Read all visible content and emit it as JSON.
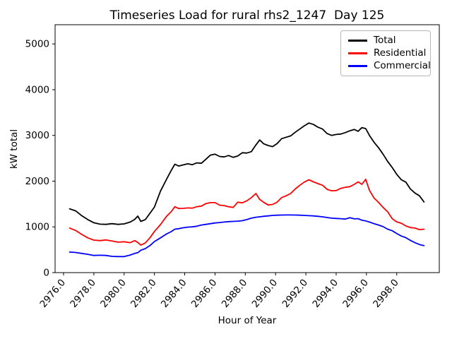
{
  "chart_data": {
    "type": "line",
    "title": "Timeseries Load for rural rhs2_1247  Day 125",
    "xlabel": "Hour of Year",
    "ylabel": "kW total",
    "xlim": [
      2975.44,
      3000.81
    ],
    "ylim": [
      0,
      5420
    ],
    "grid": false,
    "legend_position": "upper right",
    "legend_border_color": "#b7b7b7",
    "background_color": "#ffffff",
    "xticks": [
      2976,
      2978,
      2980,
      2982,
      2984,
      2986,
      2988,
      2990,
      2992,
      2994,
      2996,
      2998
    ],
    "xtick_labels": [
      "2976.0",
      "2978.0",
      "2980.0",
      "2982.0",
      "2984.0",
      "2986.0",
      "2988.0",
      "2990.0",
      "2992.0",
      "2994.0",
      "2996.0",
      "2998.0"
    ],
    "xtick_rotation": -50,
    "yticks": [
      0,
      1000,
      2000,
      3000,
      4000,
      5000
    ],
    "ytick_labels": [
      "0",
      "1000",
      "2000",
      "3000",
      "4000",
      "5000"
    ],
    "x": [
      2976.4,
      2976.8,
      2977.2,
      2977.6,
      2978.0,
      2978.4,
      2978.8,
      2979.2,
      2979.6,
      2980.0,
      2980.4,
      2980.7,
      2980.9,
      2981.1,
      2981.4,
      2981.7,
      2982.0,
      2982.4,
      2982.8,
      2983.1,
      2983.35,
      2983.6,
      2983.9,
      2984.2,
      2984.5,
      2984.8,
      2985.1,
      2985.4,
      2985.7,
      2986.0,
      2986.3,
      2986.6,
      2986.9,
      2987.2,
      2987.5,
      2987.8,
      2988.1,
      2988.4,
      2988.7,
      2988.95,
      2989.2,
      2989.5,
      2989.8,
      2990.1,
      2990.4,
      2990.7,
      2991.0,
      2991.3,
      2991.6,
      2991.9,
      2992.2,
      2992.5,
      2992.8,
      2993.1,
      2993.4,
      2993.7,
      2994.0,
      2994.3,
      2994.6,
      2994.9,
      2995.2,
      2995.45,
      2995.7,
      2995.95,
      2996.2,
      2996.5,
      2996.8,
      2997.1,
      2997.4,
      2997.7,
      2998.0,
      2998.3,
      2998.6,
      2998.9,
      2999.2,
      2999.5,
      2999.8
    ],
    "series": [
      {
        "name": "Total",
        "color": "#000000",
        "values": [
          1395,
          1350,
          1245,
          1160,
          1090,
          1060,
          1055,
          1070,
          1055,
          1065,
          1105,
          1165,
          1235,
          1120,
          1160,
          1295,
          1435,
          1780,
          2040,
          2230,
          2370,
          2330,
          2355,
          2380,
          2360,
          2400,
          2390,
          2480,
          2570,
          2590,
          2540,
          2530,
          2560,
          2520,
          2550,
          2620,
          2615,
          2645,
          2790,
          2900,
          2820,
          2780,
          2755,
          2820,
          2930,
          2960,
          2990,
          3070,
          3140,
          3210,
          3270,
          3240,
          3180,
          3140,
          3040,
          3000,
          3020,
          3030,
          3060,
          3100,
          3130,
          3090,
          3170,
          3150,
          3000,
          2850,
          2730,
          2590,
          2430,
          2300,
          2150,
          2030,
          1980,
          1830,
          1740,
          1680,
          1545
        ]
      },
      {
        "name": "Residential",
        "color": "#ff0000",
        "values": [
          975,
          920,
          835,
          760,
          710,
          700,
          715,
          690,
          665,
          675,
          655,
          700,
          660,
          600,
          650,
          760,
          900,
          1050,
          1230,
          1330,
          1440,
          1400,
          1405,
          1415,
          1410,
          1440,
          1455,
          1510,
          1530,
          1530,
          1475,
          1465,
          1440,
          1425,
          1540,
          1525,
          1570,
          1640,
          1730,
          1600,
          1540,
          1480,
          1490,
          1540,
          1640,
          1680,
          1730,
          1830,
          1910,
          1980,
          2030,
          1985,
          1945,
          1910,
          1820,
          1790,
          1795,
          1840,
          1865,
          1880,
          1930,
          1985,
          1930,
          2040,
          1800,
          1630,
          1535,
          1425,
          1330,
          1180,
          1110,
          1080,
          1020,
          985,
          975,
          940,
          950
        ]
      },
      {
        "name": "Commercial",
        "color": "#0000ff",
        "values": [
          450,
          440,
          420,
          400,
          375,
          380,
          375,
          355,
          350,
          350,
          385,
          420,
          435,
          490,
          525,
          590,
          680,
          760,
          845,
          895,
          950,
          960,
          980,
          995,
          1000,
          1015,
          1040,
          1055,
          1070,
          1085,
          1095,
          1105,
          1115,
          1120,
          1125,
          1135,
          1160,
          1190,
          1210,
          1220,
          1230,
          1240,
          1250,
          1255,
          1258,
          1260,
          1260,
          1258,
          1255,
          1250,
          1245,
          1240,
          1230,
          1220,
          1205,
          1190,
          1185,
          1180,
          1170,
          1200,
          1175,
          1180,
          1145,
          1130,
          1105,
          1070,
          1040,
          1005,
          950,
          915,
          855,
          800,
          765,
          705,
          655,
          615,
          590
        ]
      }
    ]
  }
}
